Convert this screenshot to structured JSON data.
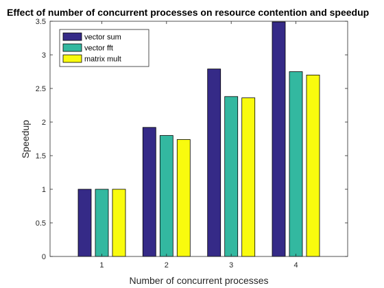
{
  "chart_data": {
    "type": "bar",
    "title": "Effect of number of concurrent processes on resource contention and speedup",
    "xlabel": "Number of concurrent processes",
    "ylabel": "Speedup",
    "categories": [
      "1",
      "2",
      "3",
      "4"
    ],
    "ylim": [
      0,
      3.5
    ],
    "yticks": [
      "0",
      "0.5",
      "1",
      "1.5",
      "2",
      "2.5",
      "3",
      "3.5"
    ],
    "grid": false,
    "legend_position": "top-left",
    "series": [
      {
        "name": "vector sum",
        "color": "#352a87",
        "values": [
          1.0,
          1.92,
          2.79,
          3.49
        ]
      },
      {
        "name": "vector fft",
        "color": "#33b8a0",
        "values": [
          1.0,
          1.8,
          2.38,
          2.75
        ]
      },
      {
        "name": "matrix mult",
        "color": "#f9fb0e",
        "values": [
          1.0,
          1.74,
          2.36,
          2.7
        ]
      }
    ]
  }
}
